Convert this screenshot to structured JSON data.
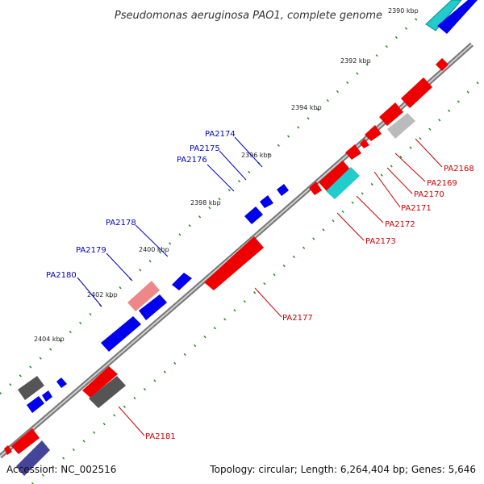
{
  "title": "Pseudomonas aeruginosa PAO1, complete genome",
  "footer": {
    "accession": "Accession: NC_002516",
    "summary": "Topology: circular; Length: 6,264,404 bp; Genes: 5,646"
  },
  "ruler": [
    "2390 kbp",
    "2392 kbp",
    "2394 kbp",
    "2396 kbp",
    "2398 kbp",
    "2400 kbp",
    "2402 kbp",
    "2404 kbp"
  ],
  "labels_forward": [
    "PA2174",
    "PA2175",
    "PA2176",
    "PA2178",
    "PA2179",
    "PA2180"
  ],
  "labels_reverse": [
    "PA2168",
    "PA2169",
    "PA2170",
    "PA2171",
    "PA2172",
    "PA2173",
    "PA2177",
    "PA2181"
  ],
  "colors": {
    "forward": "#0000ee",
    "reverse": "#ee0000",
    "rna_cyan": "#22cccc",
    "pseudo_grey": "#555555",
    "light_grey": "#bbbbbb",
    "pink": "#ee8888",
    "navy": "#444499",
    "backbone": "#888888",
    "tick": "#227722"
  }
}
